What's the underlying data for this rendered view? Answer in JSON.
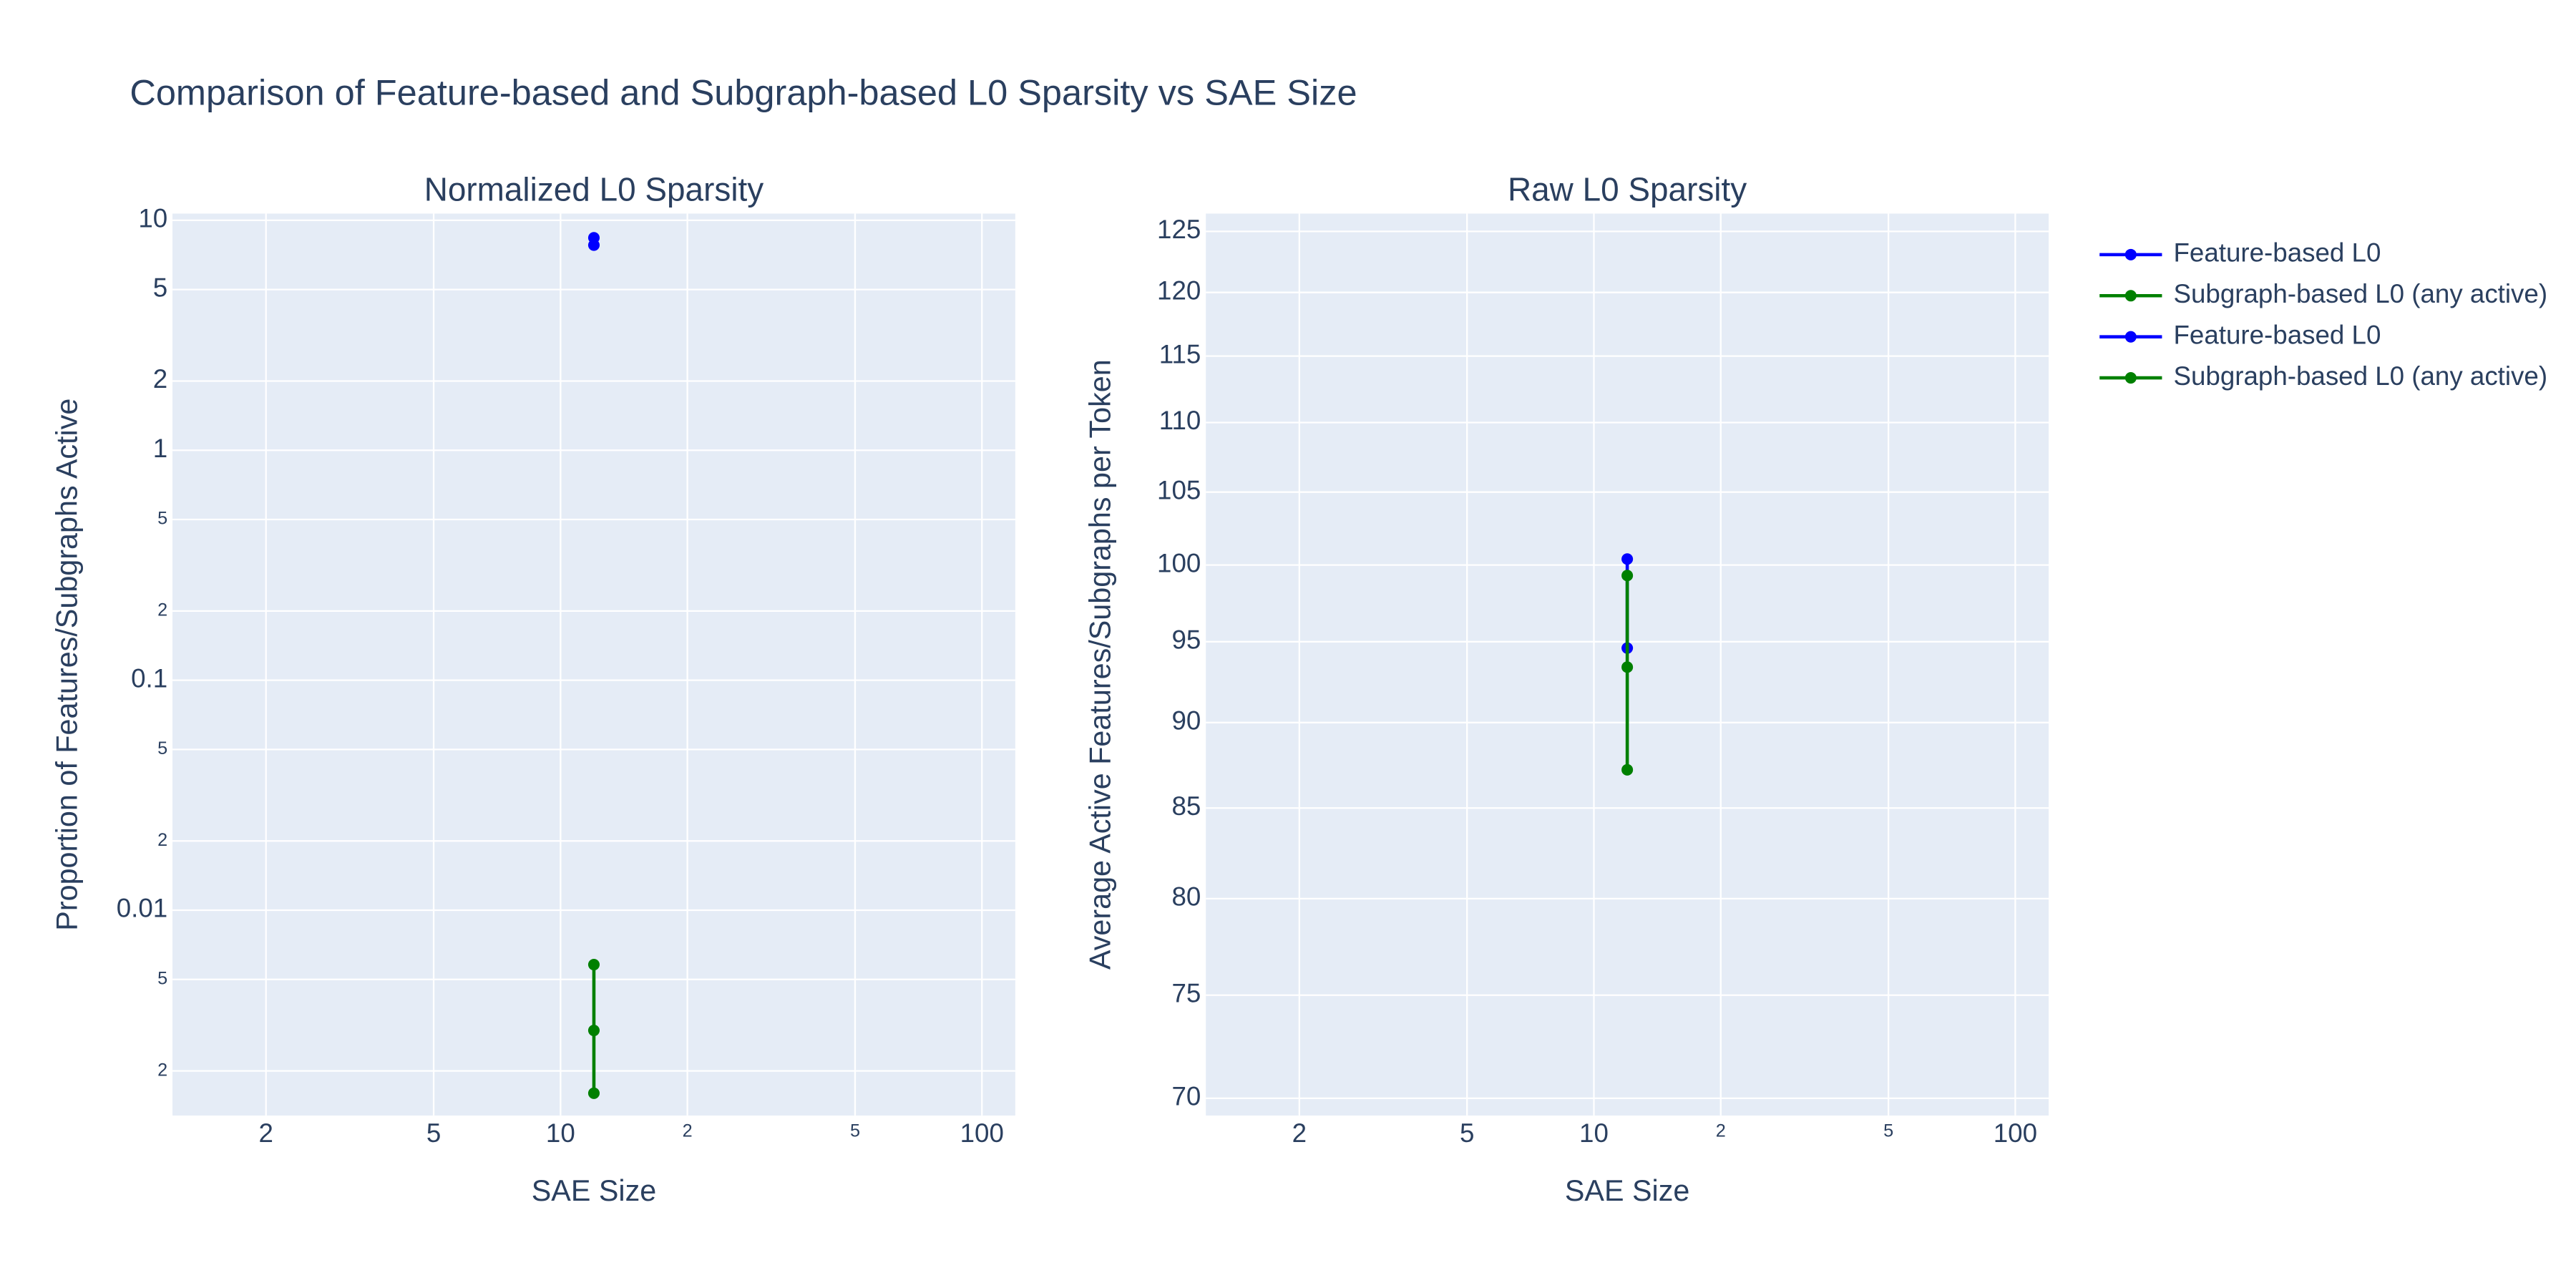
{
  "title": "Comparison of Feature-based and Subgraph-based L0 Sparsity vs SAE Size",
  "legend": "right",
  "chart_data": [
    {
      "type": "line",
      "title": "Normalized L0 Sparsity",
      "x_label": "SAE Size",
      "y_label": "Proportion of Features/Subgraphs Active",
      "log_x": true,
      "log_y": true,
      "grid": true,
      "xlim": [
        1.2,
        120
      ],
      "ylim": [
        0.00128,
        10.7
      ],
      "xticks": [
        2,
        5,
        10,
        {
          "value": 20,
          "label": "2"
        },
        {
          "value": 50,
          "label": "5"
        },
        100
      ],
      "yticks": [
        10,
        5,
        2,
        1,
        {
          "value": 0.5,
          "label": "5"
        },
        {
          "value": 0.2,
          "label": "2"
        },
        0.1,
        {
          "value": 0.05,
          "label": "5"
        },
        {
          "value": 0.02,
          "label": "2"
        },
        0.01,
        {
          "value": 0.005,
          "label": "5"
        },
        {
          "value": 0.002,
          "label": "2"
        }
      ],
      "series": [
        {
          "name": "Feature-based L0",
          "color": "blue",
          "x": [
            12,
            12
          ],
          "values": [
            8.4,
            7.8
          ]
        },
        {
          "name": "Subgraph-based L0 (any active)",
          "color": "green",
          "x": [
            12,
            12,
            12
          ],
          "values": [
            0.0058,
            0.003,
            0.0016
          ]
        }
      ]
    },
    {
      "type": "line",
      "title": "Raw L0 Sparsity",
      "x_label": "SAE Size",
      "y_label": "Average Active Features/Subgraphs per Token",
      "log_x": true,
      "log_y": true,
      "grid": true,
      "xlim": [
        1.2,
        120
      ],
      "ylim": [
        69.2,
        126.5
      ],
      "xticks": [
        2,
        5,
        10,
        {
          "value": 20,
          "label": "2"
        },
        {
          "value": 50,
          "label": "5"
        },
        100
      ],
      "yticks": [
        70,
        75,
        80,
        85,
        90,
        95,
        100,
        105,
        110,
        115,
        120,
        125
      ],
      "series": [
        {
          "name": "Feature-based L0",
          "color": "blue",
          "x": [
            12,
            12
          ],
          "values": [
            100.4,
            94.6
          ]
        },
        {
          "name": "Subgraph-based L0 (any active)",
          "color": "green",
          "x": [
            12,
            12,
            12
          ],
          "values": [
            99.3,
            93.4,
            87.2
          ]
        }
      ]
    }
  ]
}
